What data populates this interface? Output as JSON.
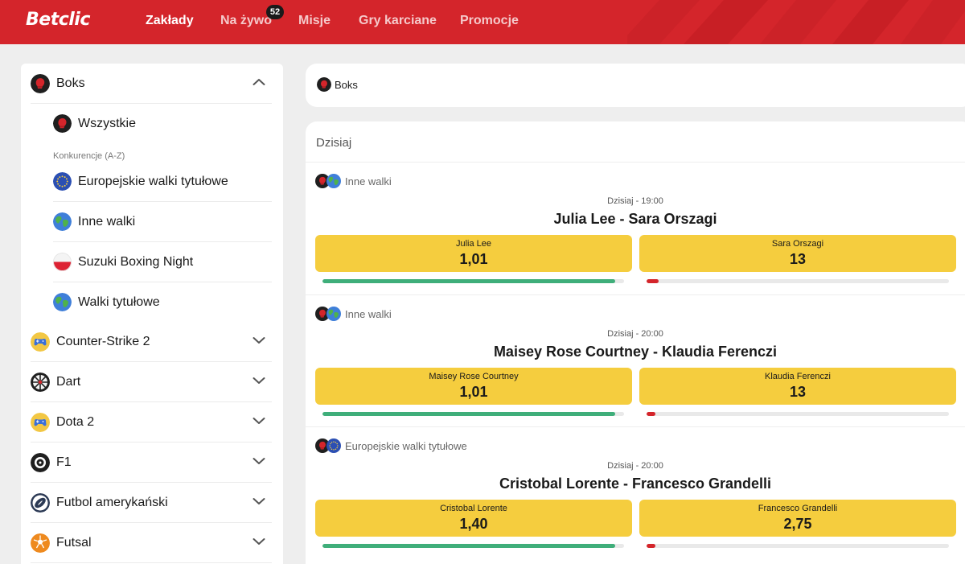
{
  "colors": {
    "brand_red": "#d4252b",
    "odds_yellow": "#f5cd3e",
    "bar_green": "#3fae7a",
    "bar_red": "#d4252b"
  },
  "header": {
    "logo": "Betclic",
    "nav": [
      {
        "label": "Zakłady"
      },
      {
        "label": "Na żywo",
        "badge": "52"
      },
      {
        "label": "Misje"
      },
      {
        "label": "Gry karciane"
      },
      {
        "label": "Promocje"
      }
    ]
  },
  "sidebar": {
    "open_sport": {
      "label": "Boks",
      "icon": "boxing-glove-icon"
    },
    "all_label": "Wszystkie",
    "competitions_heading": "Konkurencje (A-Z)",
    "competitions": [
      {
        "label": "Europejskie walki tytułowe",
        "icon": "eu-flag-icon"
      },
      {
        "label": "Inne walki",
        "icon": "globe-icon"
      },
      {
        "label": "Suzuki Boxing Night",
        "icon": "poland-flag-icon"
      },
      {
        "label": "Walki tytułowe",
        "icon": "globe-icon"
      }
    ],
    "sports": [
      {
        "label": "Counter-Strike 2",
        "icon": "gamepad-icon"
      },
      {
        "label": "Dart",
        "icon": "dartboard-icon"
      },
      {
        "label": "Dota 2",
        "icon": "gamepad-icon"
      },
      {
        "label": "F1",
        "icon": "tire-icon"
      },
      {
        "label": "Futbol amerykański",
        "icon": "american-football-icon"
      },
      {
        "label": "Futsal",
        "icon": "futsal-ball-icon"
      }
    ]
  },
  "breadcrumb": {
    "label": "Boks",
    "icon": "boxing-glove-icon"
  },
  "main": {
    "day_title": "Dzisiaj",
    "events": [
      {
        "competition": "Inne walki",
        "competition_icon": "globe-icon",
        "time": "Dzisiaj  -  19:00",
        "title": "Julia Lee - Sara Orszagi",
        "home": {
          "name": "Julia Lee",
          "odds": "1,01",
          "share": 0.97
        },
        "away": {
          "name": "Sara Orszagi",
          "odds": "13",
          "share": 0.04
        }
      },
      {
        "competition": "Inne walki",
        "competition_icon": "globe-icon",
        "time": "Dzisiaj  -  20:00",
        "title": "Maisey Rose Courtney - Klaudia Ferenczi",
        "home": {
          "name": "Maisey Rose Courtney",
          "odds": "1,01",
          "share": 0.97
        },
        "away": {
          "name": "Klaudia Ferenczi",
          "odds": "13",
          "share": 0.03
        }
      },
      {
        "competition": "Europejskie walki tytułowe",
        "competition_icon": "eu-flag-icon",
        "time": "Dzisiaj  -  20:00",
        "title": "Cristobal Lorente - Francesco Grandelli",
        "home": {
          "name": "Cristobal Lorente",
          "odds": "1,40",
          "share": 0.97
        },
        "away": {
          "name": "Francesco Grandelli",
          "odds": "2,75",
          "share": 0.03
        }
      }
    ]
  }
}
